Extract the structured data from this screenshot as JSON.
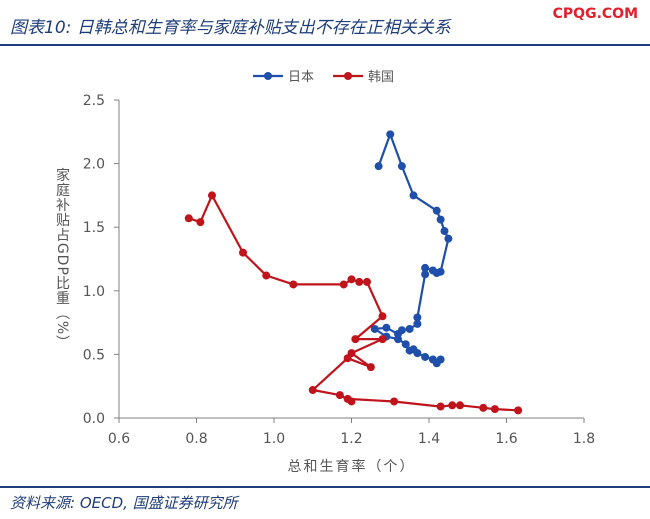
{
  "header": {
    "title": "图表10:  日韩总和生育率与家庭补贴支出不存在正相关关系",
    "brand": "CPQG.COM"
  },
  "footer": {
    "source": "资料来源:  OECD,  国盛证券研究所"
  },
  "colors": {
    "japan": "#1f4faa",
    "korea": "#c0141c",
    "axis": "#808080",
    "brand": "#e0202a",
    "title": "#1f3d7a"
  },
  "chart_data": {
    "type": "line",
    "xlabel": "总和生育率（个）",
    "ylabel": "家庭补贴占GDP比重（%）",
    "xlim": [
      0.6,
      1.8
    ],
    "ylim": [
      0.0,
      2.5
    ],
    "xticks": [
      "0.6",
      "0.8",
      "1.0",
      "1.2",
      "1.4",
      "1.6",
      "1.8"
    ],
    "yticks": [
      "0.0",
      "0.5",
      "1.0",
      "1.5",
      "2.0",
      "2.5"
    ],
    "grid": false,
    "legend_position": "top-center",
    "series": [
      {
        "name": "日本",
        "color": "#1f4faa",
        "points": [
          [
            1.27,
            1.98
          ],
          [
            1.3,
            2.23
          ],
          [
            1.33,
            1.98
          ],
          [
            1.36,
            1.75
          ],
          [
            1.42,
            1.63
          ],
          [
            1.43,
            1.56
          ],
          [
            1.44,
            1.47
          ],
          [
            1.45,
            1.41
          ],
          [
            1.43,
            1.15
          ],
          [
            1.42,
            1.14
          ],
          [
            1.41,
            1.16
          ],
          [
            1.39,
            1.18
          ],
          [
            1.39,
            1.13
          ],
          [
            1.37,
            0.79
          ],
          [
            1.37,
            0.74
          ],
          [
            1.35,
            0.7
          ],
          [
            1.33,
            0.69
          ],
          [
            1.32,
            0.66
          ],
          [
            1.29,
            0.71
          ],
          [
            1.26,
            0.7
          ],
          [
            1.29,
            0.64
          ],
          [
            1.32,
            0.62
          ],
          [
            1.34,
            0.58
          ],
          [
            1.35,
            0.53
          ],
          [
            1.36,
            0.54
          ],
          [
            1.37,
            0.51
          ],
          [
            1.39,
            0.48
          ],
          [
            1.41,
            0.46
          ],
          [
            1.42,
            0.43
          ],
          [
            1.43,
            0.46
          ]
        ]
      },
      {
        "name": "韩国",
        "color": "#c0141c",
        "points": [
          [
            0.78,
            1.57
          ],
          [
            0.81,
            1.54
          ],
          [
            0.84,
            1.75
          ],
          [
            0.92,
            1.3
          ],
          [
            0.98,
            1.12
          ],
          [
            1.05,
            1.05
          ],
          [
            1.18,
            1.05
          ],
          [
            1.2,
            1.09
          ],
          [
            1.22,
            1.07
          ],
          [
            1.24,
            1.07
          ],
          [
            1.28,
            0.8
          ],
          [
            1.21,
            0.62
          ],
          [
            1.28,
            0.62
          ],
          [
            1.2,
            0.51
          ],
          [
            1.25,
            0.4
          ],
          [
            1.19,
            0.47
          ],
          [
            1.1,
            0.22
          ],
          [
            1.17,
            0.18
          ],
          [
            1.2,
            0.13
          ],
          [
            1.19,
            0.15
          ],
          [
            1.31,
            0.13
          ],
          [
            1.43,
            0.09
          ],
          [
            1.46,
            0.1
          ],
          [
            1.48,
            0.1
          ],
          [
            1.54,
            0.08
          ],
          [
            1.57,
            0.07
          ],
          [
            1.63,
            0.06
          ]
        ]
      }
    ]
  }
}
